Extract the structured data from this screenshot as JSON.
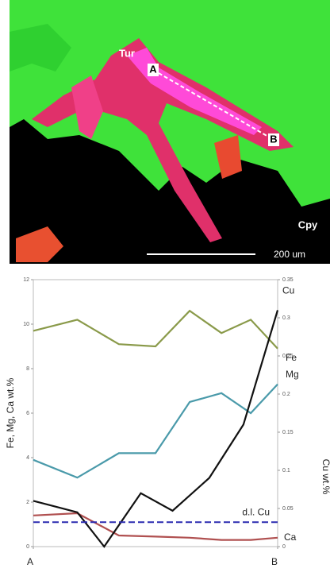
{
  "image": {
    "labels": [
      "Tur",
      "A",
      "B",
      "Cpy",
      "200 um"
    ]
  },
  "chart_data": {
    "type": "line",
    "ylabel": "Fe, Mg, Ca wt.%",
    "y2label": "Cu wt.%",
    "xlim": [
      0,
      1
    ],
    "xticks": [
      {
        "value": 0,
        "label": "A"
      },
      {
        "value": 1,
        "label": "B"
      }
    ],
    "ylim": [
      0,
      12
    ],
    "yticks": [
      0,
      2,
      4,
      6,
      8,
      10,
      12
    ],
    "y2lim": [
      0,
      0.35
    ],
    "y2ticks": [
      0,
      0.05,
      0.1,
      0.15,
      0.2,
      0.25,
      0.3,
      0.35
    ],
    "series": [
      {
        "name": "Fe",
        "color": "#8a9a4a",
        "x": [
          0,
          0.18,
          0.35,
          0.5,
          0.64,
          0.77,
          0.89,
          1
        ],
        "values": [
          9.7,
          10.2,
          9.1,
          9.0,
          10.6,
          9.6,
          10.2,
          8.9
        ]
      },
      {
        "name": "Mg",
        "color": "#4a9aaa",
        "x": [
          0,
          0.18,
          0.35,
          0.5,
          0.64,
          0.77,
          0.89,
          1
        ],
        "values": [
          3.9,
          3.1,
          4.2,
          4.2,
          6.5,
          6.9,
          6.0,
          7.3
        ]
      },
      {
        "name": "Ca",
        "color": "#b05050",
        "x": [
          0,
          0.18,
          0.35,
          0.5,
          0.64,
          0.77,
          0.89,
          1
        ],
        "values": [
          1.4,
          1.5,
          0.5,
          0.45,
          0.4,
          0.3,
          0.3,
          0.4
        ]
      },
      {
        "name": "Cu",
        "color": "#111111",
        "axis": "y2",
        "x": [
          0,
          0.18,
          0.29,
          0.44,
          0.57,
          0.72,
          0.86,
          1
        ],
        "values": [
          0.06,
          0.045,
          0,
          0.07,
          0.047,
          0.09,
          0.16,
          0.31
        ]
      },
      {
        "name": "d.l. Cu",
        "color": "#2a2ab0",
        "axis": "y2",
        "dashed": true,
        "x": [
          0,
          1
        ],
        "values": [
          0.032,
          0.032
        ]
      }
    ]
  }
}
